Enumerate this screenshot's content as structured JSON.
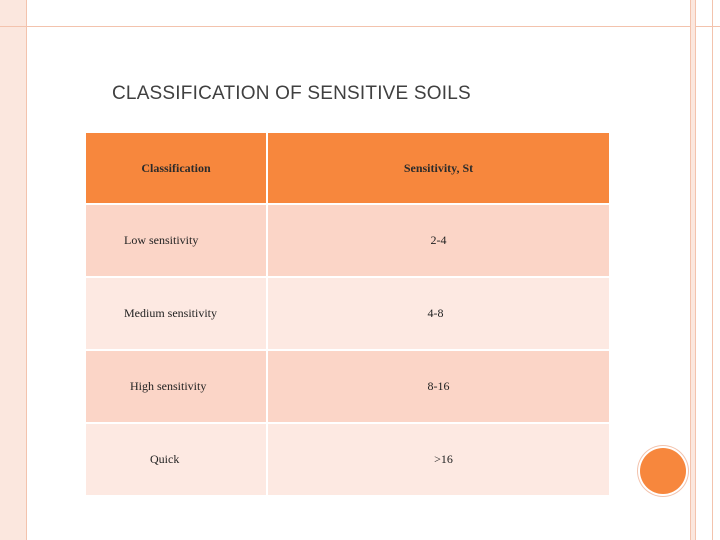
{
  "slide": {
    "title": "CLASSIFICATION OF SENSITIVE SOILS"
  },
  "table": {
    "headers": [
      "Classification",
      "Sensitivity, St"
    ],
    "rows": [
      {
        "classification": "Low sensitivity",
        "sensitivity": "2-4"
      },
      {
        "classification": "Medium sensitivity",
        "sensitivity": "4-8"
      },
      {
        "classification": "High sensitivity",
        "sensitivity": "8-16"
      },
      {
        "classification": "Quick",
        "sensitivity": ">16"
      }
    ]
  },
  "colors": {
    "accent": "#f7873d",
    "row_odd": "#fbd5c7",
    "row_even": "#fde9e2",
    "frame": "#f3c3ad"
  }
}
